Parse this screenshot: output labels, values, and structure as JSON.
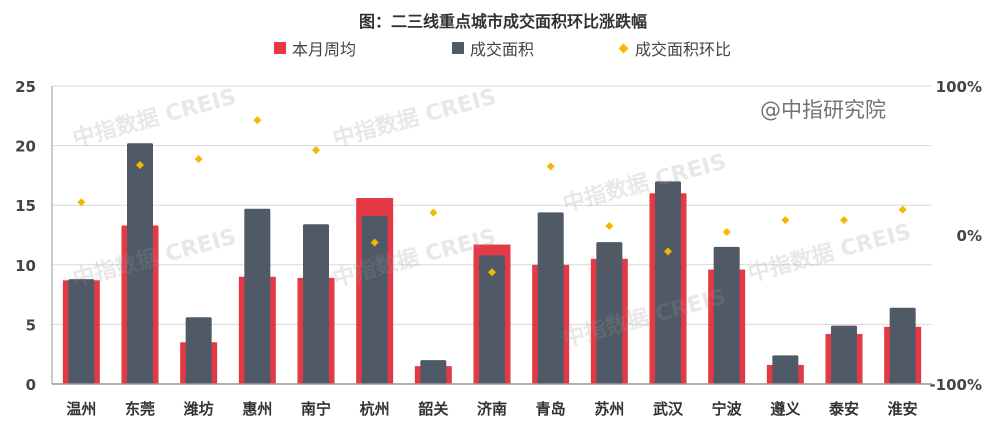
{
  "chart_data": {
    "type": "bar",
    "title": "图：二三线重点城市成交面积环比涨跌幅",
    "categories": [
      "温州",
      "东莞",
      "潍坊",
      "惠州",
      "南宁",
      "杭州",
      "韶关",
      "济南",
      "青岛",
      "苏州",
      "武汉",
      "宁波",
      "遵义",
      "泰安",
      "淮安"
    ],
    "series": [
      {
        "name": "本月周均",
        "type": "bar",
        "axis": "left",
        "color": "#e63946",
        "values": [
          8.7,
          13.3,
          3.5,
          9.0,
          8.9,
          15.6,
          1.5,
          11.7,
          10.0,
          10.5,
          16.0,
          9.6,
          1.6,
          4.2,
          4.8
        ]
      },
      {
        "name": "成交面积",
        "type": "bar",
        "axis": "left",
        "color": "#4f5a66",
        "values": [
          8.8,
          20.2,
          5.6,
          14.7,
          13.4,
          14.1,
          2.0,
          10.8,
          14.4,
          11.9,
          17.0,
          11.5,
          2.4,
          4.9,
          6.4
        ]
      },
      {
        "name": "成交面积环比",
        "type": "scatter",
        "axis": "right",
        "color": "#f5b800",
        "values": [
          22,
          47,
          51,
          77,
          57,
          -5,
          15,
          -25,
          46,
          6,
          -11,
          2,
          10,
          10,
          17
        ]
      }
    ],
    "left_axis": {
      "ylim": [
        0,
        25
      ],
      "ticks": [
        "0",
        "5",
        "10",
        "15",
        "20",
        "25"
      ]
    },
    "right_axis": {
      "ylim": [
        -100,
        100
      ],
      "ticks": [
        "-100%",
        "0%",
        "100%"
      ]
    },
    "grid": true,
    "legend_position": "top-center"
  },
  "watermark": "中指数据 CREIS",
  "source_mark": "@中指研究院"
}
